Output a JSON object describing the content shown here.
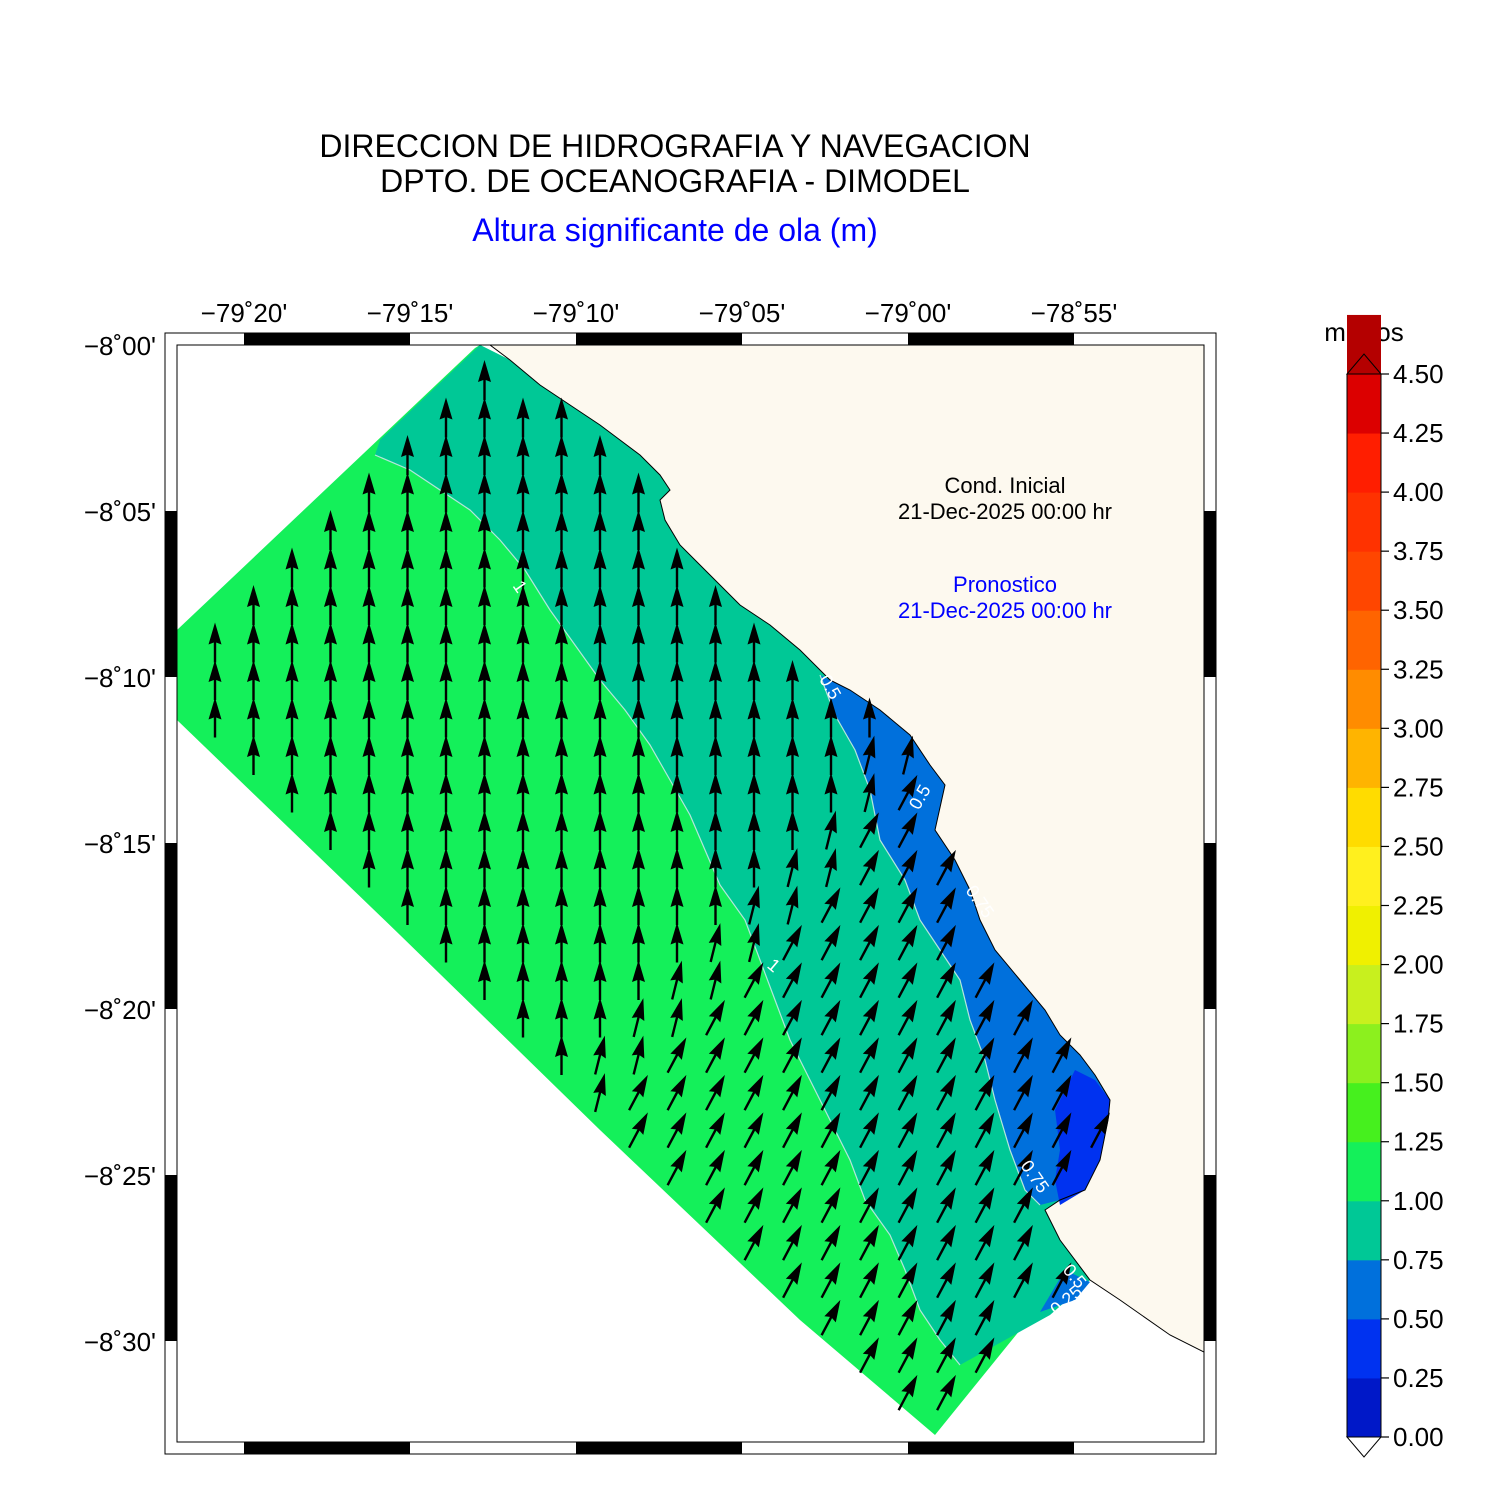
{
  "header": {
    "line1": "DIRECCION DE HIDROGRAFIA Y NAVEGACION",
    "line2": "DPTO. DE OCEANOGRAFIA - DIMODEL",
    "subtitle": "Altura significante de ola (m)"
  },
  "annotations": {
    "initial_label": "Cond. Inicial",
    "initial_time": "21-Dec-2025 00:00 hr",
    "forecast_label": "Pronostico",
    "forecast_time": "21-Dec-2025 00:00 hr",
    "initial_color": "#000000",
    "forecast_color": "#0000ff"
  },
  "axes": {
    "lon_labels": [
      "−79˚20'",
      "−79˚15'",
      "−79˚10'",
      "−79˚05'",
      "−79˚00'",
      "−78˚55'"
    ],
    "lat_labels": [
      "−8˚00'",
      "−8˚05'",
      "−8˚10'",
      "−8˚15'",
      "−8˚20'",
      "−8˚25'",
      "−8˚30'"
    ]
  },
  "contour_labels": [
    "1",
    "0.5",
    "0.5",
    "0.75",
    "1",
    "0.75",
    "0.5",
    "0.25"
  ],
  "colorbar": {
    "unit": "metros",
    "tick_labels": [
      "4.50",
      "4.25",
      "4.00",
      "3.75",
      "3.50",
      "3.25",
      "3.00",
      "2.75",
      "2.50",
      "2.25",
      "2.00",
      "1.75",
      "1.50",
      "1.25",
      "1.00",
      "0.75",
      "0.50",
      "0.25",
      "0.00"
    ],
    "colors": [
      "#0018c8",
      "#0032f0",
      "#0070dc",
      "#00c896",
      "#14f05a",
      "#46f01e",
      "#8cf01e",
      "#c8f01e",
      "#f0f000",
      "#fff01e",
      "#ffdc00",
      "#ffb400",
      "#ff8c00",
      "#ff6400",
      "#ff4600",
      "#ff3200",
      "#ff1e00",
      "#dc0000",
      "#b40000"
    ]
  },
  "colors": {
    "land": "#fdf9ef",
    "ocean_background": "#ffffff",
    "arrow": "#000000",
    "contour_line": "#b4e6dc"
  }
}
